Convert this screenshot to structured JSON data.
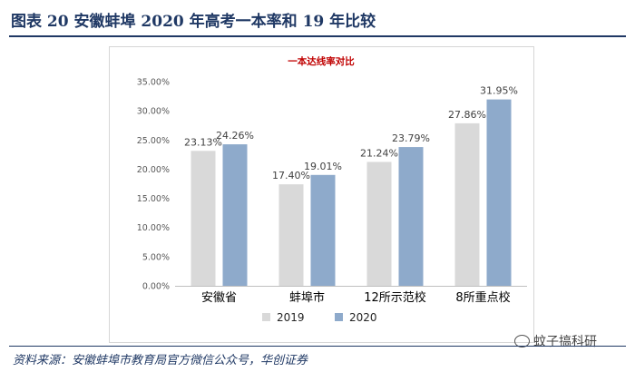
{
  "figure": {
    "title": "图表 20 安徽蚌埠 2020 年高考一本率和 19 年比较",
    "source": "资料来源：安徽蚌埠市教育局官方微信公众号，华创证券",
    "watermark": "蚊子搞科研",
    "watermark_icon": "wechat-icon"
  },
  "chart_data": {
    "type": "bar",
    "title": "一本达线率对比",
    "categories": [
      "安徽省",
      "蚌埠市",
      "12所示范校",
      "8所重点校"
    ],
    "series": [
      {
        "name": "2019",
        "values": [
          23.13,
          17.4,
          21.24,
          27.86
        ],
        "labels": [
          "23.13%",
          "17.40%",
          "21.24%",
          "27.86%"
        ],
        "color": "#d9d9d9"
      },
      {
        "name": "2020",
        "values": [
          24.26,
          19.01,
          23.79,
          31.95
        ],
        "labels": [
          "24.26%",
          "19.01%",
          "23.79%",
          "31.95%"
        ],
        "color": "#8eaacb"
      }
    ],
    "y_ticks": [
      "0.00%",
      "5.00%",
      "10.00%",
      "15.00%",
      "20.00%",
      "25.00%",
      "30.00%",
      "35.00%"
    ],
    "ylim": [
      0,
      35
    ],
    "xlabel": "",
    "ylabel": "",
    "grid": false,
    "legend_position": "bottom",
    "title_color": "#c00000"
  }
}
